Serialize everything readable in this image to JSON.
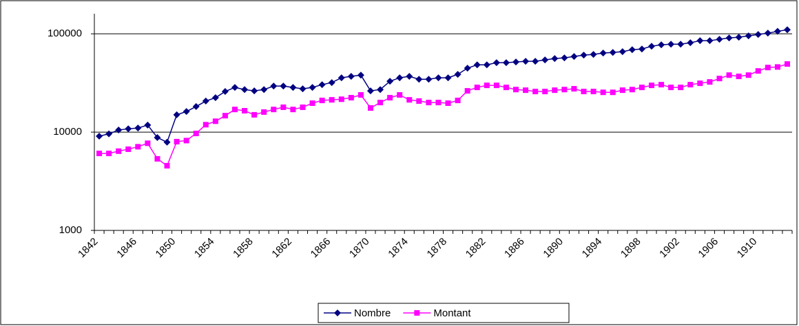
{
  "chart_data": {
    "type": "line",
    "log_scale": true,
    "grid": true,
    "legend": "bottom",
    "categories": [
      1842,
      null,
      null,
      null,
      1846,
      null,
      null,
      null,
      1850,
      null,
      null,
      null,
      1854,
      null,
      null,
      null,
      1858,
      null,
      null,
      null,
      1862,
      null,
      null,
      null,
      1866,
      null,
      null,
      null,
      1870,
      null,
      null,
      null,
      1874,
      null,
      null,
      null,
      1878,
      null,
      null,
      null,
      1882,
      null,
      null,
      null,
      1886,
      null,
      null,
      null,
      1890,
      null,
      null,
      null,
      1894,
      null,
      null,
      null,
      1898,
      null,
      null,
      null,
      1902,
      null,
      null,
      null,
      1906,
      null,
      null,
      null,
      1910,
      null,
      null,
      null
    ],
    "series": [
      {
        "name": "Nombre",
        "color": "#000080",
        "marker": "diamond",
        "values": [
          9100,
          9600,
          10500,
          10800,
          11000,
          11800,
          8800,
          7900,
          15000,
          16200,
          18200,
          20700,
          22400,
          25900,
          28500,
          27100,
          26300,
          27100,
          29400,
          29400,
          28500,
          27600,
          28500,
          30400,
          31900,
          35700,
          36900,
          38000,
          26300,
          27100,
          32900,
          35700,
          36900,
          34500,
          34500,
          35700,
          35700,
          38700,
          44700,
          48400,
          48400,
          50900,
          50900,
          51700,
          52500,
          52500,
          54300,
          56000,
          56900,
          58800,
          60700,
          61700,
          63700,
          64700,
          65800,
          69000,
          70100,
          74800,
          77300,
          78500,
          78500,
          81100,
          85100,
          85100,
          87900,
          90800,
          92300,
          95300,
          98400,
          101600,
          106000,
          110000
        ]
      },
      {
        "name": "Montant",
        "color": "#ff00ff",
        "marker": "square",
        "values": [
          6070,
          6070,
          6400,
          6700,
          7100,
          7700,
          5350,
          4550,
          8000,
          8200,
          9700,
          11900,
          12900,
          14700,
          17000,
          16500,
          15000,
          16000,
          17000,
          17900,
          17000,
          17900,
          19700,
          21000,
          21300,
          21600,
          22400,
          23900,
          17600,
          20000,
          22400,
          23900,
          21300,
          20700,
          20000,
          20000,
          19700,
          21000,
          26300,
          28500,
          29900,
          29900,
          28500,
          27100,
          26700,
          25900,
          25900,
          26700,
          27100,
          27600,
          25900,
          25900,
          25400,
          25400,
          26700,
          27100,
          28500,
          29900,
          30400,
          28500,
          28500,
          30400,
          31400,
          32400,
          35100,
          38000,
          36900,
          38000,
          41900,
          45400,
          46000,
          49300
        ]
      }
    ],
    "ylim": [
      1000,
      160000
    ],
    "yticks": [
      1000,
      10000,
      100000
    ]
  }
}
